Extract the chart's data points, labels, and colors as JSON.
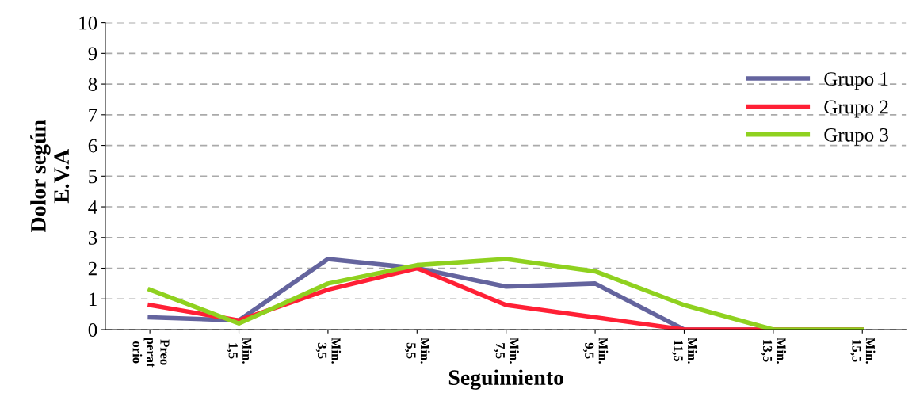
{
  "chart_data": {
    "type": "line",
    "xlabel": "Seguimiento",
    "ylabel": "Dolor según\nE.V.A",
    "categories": [
      "Preo\nperat\norio",
      "Min.\n1,5",
      "Min.\n3,5",
      "Min.\n5,5",
      "Min.\n7,5",
      "Min.\n9,5",
      "Min.\n11,5",
      "Min.\n13,5",
      "Min.\n15,5"
    ],
    "series": [
      {
        "name": "Grupo 1",
        "color": "#64649e",
        "values": [
          0.4,
          0.3,
          2.3,
          2.0,
          1.4,
          1.5,
          0,
          0,
          0
        ]
      },
      {
        "name": "Grupo 2",
        "color": "#ff2035",
        "values": [
          0.8,
          0.3,
          1.3,
          2.0,
          0.8,
          0.4,
          0,
          0,
          0
        ]
      },
      {
        "name": "Grupo 3",
        "color": "#8fd11f",
        "values": [
          1.3,
          0.2,
          1.5,
          2.1,
          2.3,
          1.9,
          0.8,
          0,
          0
        ]
      }
    ],
    "ylim": [
      0,
      10
    ],
    "yticks": [
      0,
      1,
      2,
      3,
      4,
      5,
      6,
      7,
      8,
      9,
      10
    ],
    "grid": "y",
    "legend": "right",
    "marker": "none",
    "line_style": "solid"
  }
}
